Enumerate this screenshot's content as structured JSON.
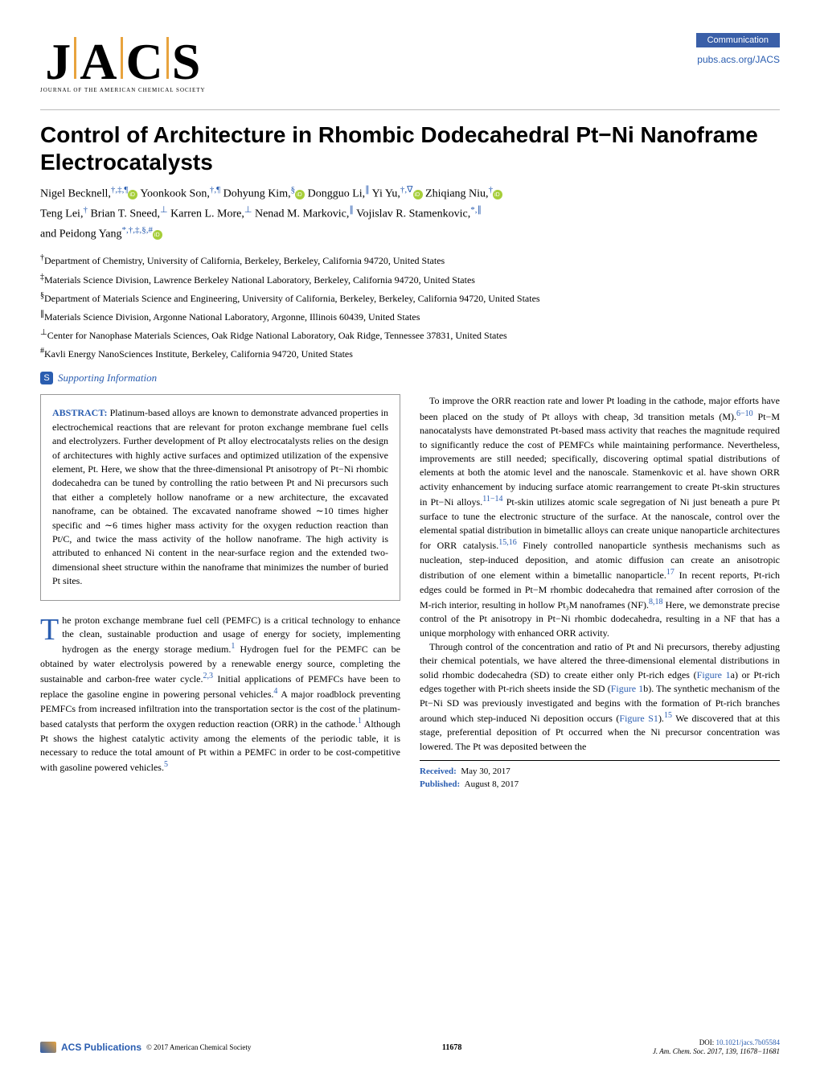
{
  "journal": {
    "logo_letters": [
      "J",
      "A",
      "C",
      "S"
    ],
    "logo_tagline": "JOURNAL OF THE AMERICAN CHEMICAL SOCIETY",
    "badge": "Communication",
    "pubs_link": "pubs.acs.org/JACS"
  },
  "article": {
    "title": "Control of Architecture in Rhombic Dodecahedral Pt−Ni Nanoframe Electrocatalysts",
    "authors_line1_parts": [
      {
        "name": "Nigel Becknell,",
        "super": "†,‡,¶",
        "orcid": true
      },
      {
        "name": " Yoonkook Son,",
        "super": "†,¶",
        "orcid": false
      },
      {
        "name": " Dohyung Kim,",
        "super": "§",
        "orcid": true
      },
      {
        "name": " Dongguo Li,",
        "super": "∥",
        "orcid": false
      },
      {
        "name": " Yi Yu,",
        "super": "†,∇",
        "orcid": true
      },
      {
        "name": " Zhiqiang Niu,",
        "super": "†",
        "orcid": true
      }
    ],
    "authors_line2_parts": [
      {
        "name": "Teng Lei,",
        "super": "†",
        "orcid": false
      },
      {
        "name": " Brian T. Sneed,",
        "super": "⊥",
        "orcid": false
      },
      {
        "name": " Karren L. More,",
        "super": "⊥",
        "orcid": false
      },
      {
        "name": " Nenad M. Markovic,",
        "super": "∥",
        "orcid": false
      },
      {
        "name": " Vojislav R. Stamenkovic,",
        "super": "*,∥",
        "orcid": false
      }
    ],
    "authors_line3_parts": [
      {
        "name": "and Peidong Yang",
        "super": "*,†,‡,§,#",
        "orcid": true
      }
    ],
    "affiliations": [
      {
        "sym": "†",
        "text": "Department of Chemistry, University of California, Berkeley, Berkeley, California 94720, United States"
      },
      {
        "sym": "‡",
        "text": "Materials Science Division, Lawrence Berkeley National Laboratory, Berkeley, California 94720, United States"
      },
      {
        "sym": "§",
        "text": "Department of Materials Science and Engineering, University of California, Berkeley, Berkeley, California 94720, United States"
      },
      {
        "sym": "∥",
        "text": "Materials Science Division, Argonne National Laboratory, Argonne, Illinois 60439, United States"
      },
      {
        "sym": "⊥",
        "text": "Center for Nanophase Materials Sciences, Oak Ridge National Laboratory, Oak Ridge, Tennessee 37831, United States"
      },
      {
        "sym": "#",
        "text": "Kavli Energy NanoSciences Institute, Berkeley, California 94720, United States"
      }
    ],
    "supporting_badge": "S",
    "supporting_text": "Supporting Information",
    "abstract_label": "ABSTRACT:",
    "abstract_body": " Platinum-based alloys are known to demonstrate advanced properties in electrochemical reactions that are relevant for proton exchange membrane fuel cells and electrolyzers. Further development of Pt alloy electrocatalysts relies on the design of architectures with highly active surfaces and optimized utilization of the expensive element, Pt. Here, we show that the three-dimensional Pt anisotropy of Pt−Ni rhombic dodecahedra can be tuned by controlling the ratio between Pt and Ni precursors such that either a completely hollow nanoframe or a new architecture, the excavated nanoframe, can be obtained. The excavated nanoframe showed ∼10 times higher specific and ∼6 times higher mass activity for the oxygen reduction reaction than Pt/C, and twice the mass activity of the hollow nanoframe. The high activity is attributed to enhanced Ni content in the near-surface region and the extended two-dimensional sheet structure within the nanoframe that minimizes the number of buried Pt sites.",
    "body_left_dropcap": "T",
    "body_left_1": "he proton exchange membrane fuel cell (PEMFC) is a critical technology to enhance the clean, sustainable production and usage of energy for society, implementing hydrogen as the energy storage medium.",
    "body_left_1_ref": "1",
    "body_left_2": " Hydrogen fuel for the PEMFC can be obtained by water electrolysis powered by a renewable energy source, completing the sustainable and carbon-free water cycle.",
    "body_left_2_ref": "2,3",
    "body_left_3": " Initial applications of PEMFCs have been to replace the gasoline engine in powering personal vehicles.",
    "body_left_3_ref": "4",
    "body_left_4": " A major roadblock preventing PEMFCs from increased infiltration into the transportation sector is the cost of the platinum-based catalysts that perform the oxygen reduction reaction (ORR) in the cathode.",
    "body_left_4_ref": "1",
    "body_left_5": " Although Pt shows the highest catalytic activity among the elements of the periodic table, it is necessary to reduce the total amount of Pt within a PEMFC in order to be cost-competitive with gasoline powered vehicles.",
    "body_left_5_ref": "5",
    "body_right_1": "To improve the ORR reaction rate and lower Pt loading in the cathode, major efforts have been placed on the study of Pt alloys with cheap, 3d transition metals (M).",
    "body_right_1_ref": "6−10",
    "body_right_2": " Pt−M nanocatalysts have demonstrated Pt-based mass activity that reaches the magnitude required to significantly reduce the cost of PEMFCs while maintaining performance. Nevertheless, improvements are still needed; specifically, discovering optimal spatial distributions of elements at both the atomic level and the nanoscale. Stamenkovic et al. have shown ORR activity enhancement by inducing surface atomic rearrangement to create Pt-skin structures in Pt−Ni alloys.",
    "body_right_2_ref": "11−14",
    "body_right_3": " Pt-skin utilizes atomic scale segregation of Ni just beneath a pure Pt surface to tune the electronic structure of the surface. At the nanoscale, control over the elemental spatial distribution in bimetallic alloys can create unique nanoparticle architectures for ORR catalysis.",
    "body_right_3_ref": "15,16",
    "body_right_4": " Finely controlled nanoparticle synthesis mechanisms such as nucleation, step-induced deposition, and atomic diffusion can create an anisotropic distribution of one element within a bimetallic nanoparticle.",
    "body_right_4_ref": "17",
    "body_right_5": " In recent reports, Pt-rich edges could be formed in Pt−M rhombic dodecahedra that remained after corrosion of the M-rich interior, resulting in hollow Pt₃M nanoframes (NF).",
    "body_right_5_ref": "8,18",
    "body_right_6": " Here, we demonstrate precise control of the Pt anisotropy in Pt−Ni rhombic dodecahedra, resulting in a NF that has a unique morphology with enhanced ORR activity.",
    "body_right_7": "Through control of the concentration and ratio of Pt and Ni precursors, thereby adjusting their chemical potentials, we have altered the three-dimensional elemental distributions in solid rhombic dodecahedra (SD) to create either only Pt-rich edges (",
    "body_right_7_link": "Figure 1",
    "body_right_8": "a) or Pt-rich edges together with Pt-rich sheets inside the SD (",
    "body_right_8_link": "Figure 1",
    "body_right_9": "b). The synthetic mechanism of the Pt−Ni SD was previously investigated and begins with the formation of Pt-rich branches around which step-induced Ni deposition occurs (",
    "body_right_9_link": "Figure S1",
    "body_right_10": ").",
    "body_right_10_ref": "15",
    "body_right_11": " We discovered that at this stage, preferential deposition of Pt occurred when the Ni precursor concentration was lowered. The Pt was deposited between the",
    "received_label": "Received:",
    "received_val": "May 30, 2017",
    "published_label": "Published:",
    "published_val": "August 8, 2017"
  },
  "footer": {
    "acs_pub": "ACS Publications",
    "copyright": "© 2017 American Chemical Society",
    "page_num": "11678",
    "doi_label": "DOI: ",
    "doi": "10.1021/jacs.7b05584",
    "cite": "J. Am. Chem. Soc. 2017, 139, 11678−11681"
  },
  "colors": {
    "link": "#2a5db0",
    "badge": "#3a5fa8",
    "accent": "#e8a33d"
  }
}
